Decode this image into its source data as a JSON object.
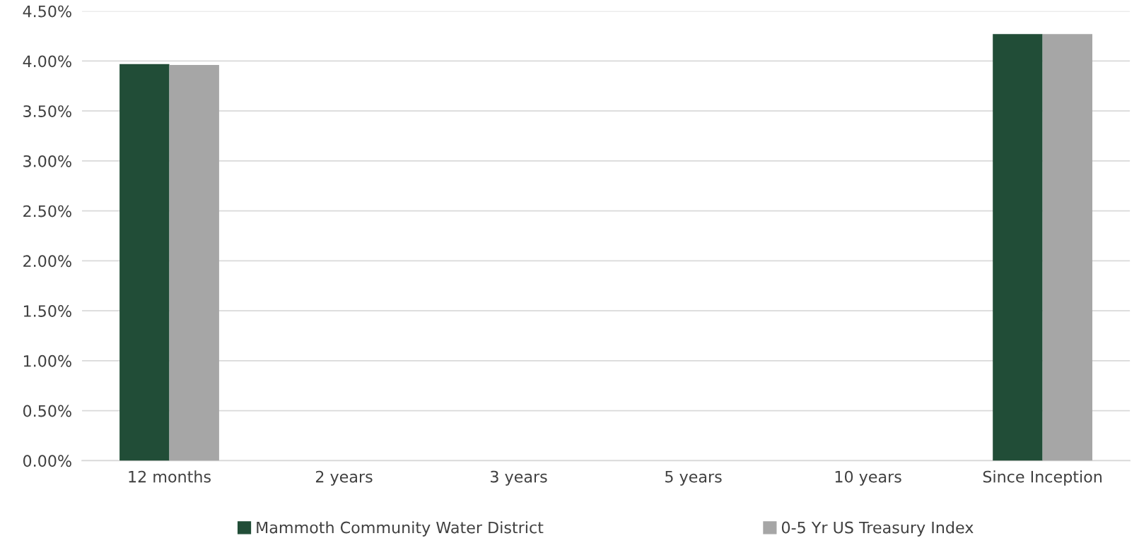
{
  "chart_data": {
    "type": "bar",
    "categories": [
      "12 months",
      "2 years",
      "3 years",
      "5 years",
      "10 years",
      "Since Inception"
    ],
    "series": [
      {
        "name": "Mammoth Community Water District",
        "color": "#214d37",
        "values": [
          3.97,
          null,
          null,
          null,
          null,
          4.27
        ]
      },
      {
        "name": "0-5 Yr US Treasury Index",
        "color": "#a6a6a6",
        "values": [
          3.96,
          null,
          null,
          null,
          null,
          4.27
        ]
      }
    ],
    "ylim": [
      0,
      4.5
    ],
    "yticks": [
      {
        "value": 0,
        "label": "0.00%"
      },
      {
        "value": 0.5,
        "label": "0.50%"
      },
      {
        "value": 1,
        "label": "1.00%"
      },
      {
        "value": 1.5,
        "label": "1.50%"
      },
      {
        "value": 2,
        "label": "2.00%"
      },
      {
        "value": 2.5,
        "label": "2.50%"
      },
      {
        "value": 3,
        "label": "3.00%"
      },
      {
        "value": 3.5,
        "label": "3.50%"
      },
      {
        "value": 4,
        "label": "4.00%"
      },
      {
        "value": 4.5,
        "label": "4.50%"
      }
    ],
    "grid": "y",
    "legend": "bottom"
  }
}
